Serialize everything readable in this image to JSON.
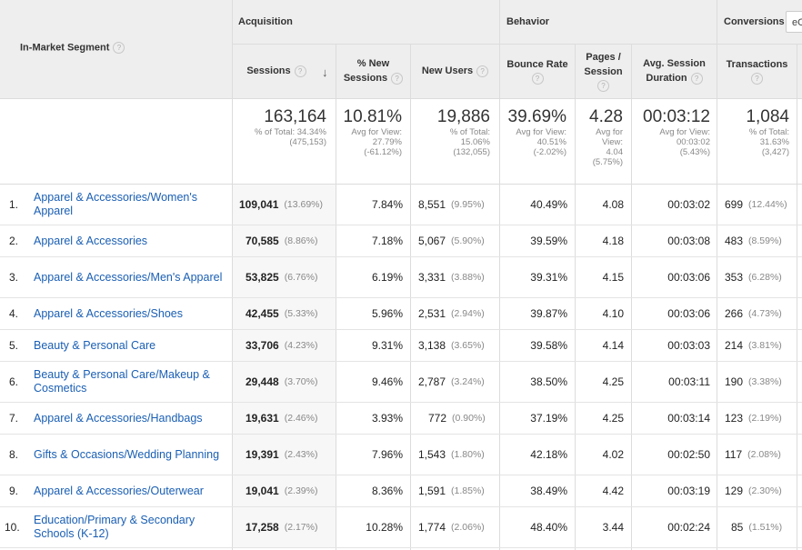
{
  "header": {
    "segment_title": "In-Market Segment",
    "groups": {
      "acquisition": "Acquisition",
      "behavior": "Behavior",
      "conversions": "Conversions"
    },
    "conversions_select": "eC",
    "columns": {
      "sessions": "Sessions",
      "new_sessions_1": "% New",
      "new_sessions_2": "Sessions",
      "new_users": "New Users",
      "bounce_rate": "Bounce Rate",
      "pages_1": "Pages /",
      "pages_2": "Session",
      "avg_1": "Avg. Session",
      "avg_2": "Duration",
      "transactions": "Transactions"
    },
    "help_glyph": "?",
    "sort_glyph": "↓"
  },
  "totals": {
    "sessions": {
      "value": "163,164",
      "l1": "% of Total: 34.34%",
      "l2": "(475,153)"
    },
    "new_sessions": {
      "value": "10.81%",
      "l1": "Avg for View:",
      "l2": "27.79%",
      "l3": "(-61.12%)"
    },
    "new_users": {
      "value": "19,886",
      "l1": "% of Total:",
      "l2": "15.06%",
      "l3": "(132,055)"
    },
    "bounce_rate": {
      "value": "39.69%",
      "l1": "Avg for View:",
      "l2": "40.51%",
      "l3": "(-2.02%)"
    },
    "pages": {
      "value": "4.28",
      "l1": "Avg for",
      "l2": "View:",
      "l3": "4.04",
      "l4": "(5.75%)"
    },
    "avg_duration": {
      "value": "00:03:12",
      "l1": "Avg for View:",
      "l2": "00:03:02",
      "l3": "(5.43%)"
    },
    "transactions": {
      "value": "1,084",
      "l1": "% of Total:",
      "l2": "31.63%",
      "l3": "(3,427)"
    }
  },
  "rows": [
    {
      "num": "1.",
      "label": "Apparel & Accessories/Women's Apparel",
      "sessions": "109,041",
      "sessions_pct": "(13.69%)",
      "new_sessions": "7.84%",
      "new_users": "8,551",
      "new_users_pct": "(9.95%)",
      "bounce": "40.49%",
      "pages": "4.08",
      "duration": "00:03:02",
      "trans": "699",
      "trans_pct": "(12.44%)"
    },
    {
      "num": "2.",
      "label": "Apparel & Accessories",
      "sessions": "70,585",
      "sessions_pct": "(8.86%)",
      "new_sessions": "7.18%",
      "new_users": "5,067",
      "new_users_pct": "(5.90%)",
      "bounce": "39.59%",
      "pages": "4.18",
      "duration": "00:03:08",
      "trans": "483",
      "trans_pct": "(8.59%)"
    },
    {
      "num": "3.",
      "label": "Apparel & Accessories/Men's Apparel",
      "sessions": "53,825",
      "sessions_pct": "(6.76%)",
      "new_sessions": "6.19%",
      "new_users": "3,331",
      "new_users_pct": "(3.88%)",
      "bounce": "39.31%",
      "pages": "4.15",
      "duration": "00:03:06",
      "trans": "353",
      "trans_pct": "(6.28%)"
    },
    {
      "num": "4.",
      "label": "Apparel & Accessories/Shoes",
      "sessions": "42,455",
      "sessions_pct": "(5.33%)",
      "new_sessions": "5.96%",
      "new_users": "2,531",
      "new_users_pct": "(2.94%)",
      "bounce": "39.87%",
      "pages": "4.10",
      "duration": "00:03:06",
      "trans": "266",
      "trans_pct": "(4.73%)"
    },
    {
      "num": "5.",
      "label": "Beauty & Personal Care",
      "sessions": "33,706",
      "sessions_pct": "(4.23%)",
      "new_sessions": "9.31%",
      "new_users": "3,138",
      "new_users_pct": "(3.65%)",
      "bounce": "39.58%",
      "pages": "4.14",
      "duration": "00:03:03",
      "trans": "214",
      "trans_pct": "(3.81%)"
    },
    {
      "num": "6.",
      "label": "Beauty & Personal Care/Makeup & Cosmetics",
      "sessions": "29,448",
      "sessions_pct": "(3.70%)",
      "new_sessions": "9.46%",
      "new_users": "2,787",
      "new_users_pct": "(3.24%)",
      "bounce": "38.50%",
      "pages": "4.25",
      "duration": "00:03:11",
      "trans": "190",
      "trans_pct": "(3.38%)"
    },
    {
      "num": "7.",
      "label": "Apparel & Accessories/Handbags",
      "sessions": "19,631",
      "sessions_pct": "(2.46%)",
      "new_sessions": "3.93%",
      "new_users": "772",
      "new_users_pct": "(0.90%)",
      "bounce": "37.19%",
      "pages": "4.25",
      "duration": "00:03:14",
      "trans": "123",
      "trans_pct": "(2.19%)"
    },
    {
      "num": "8.",
      "label": "Gifts & Occasions/Wedding Planning",
      "sessions": "19,391",
      "sessions_pct": "(2.43%)",
      "new_sessions": "7.96%",
      "new_users": "1,543",
      "new_users_pct": "(1.80%)",
      "bounce": "42.18%",
      "pages": "4.02",
      "duration": "00:02:50",
      "trans": "117",
      "trans_pct": "(2.08%)"
    },
    {
      "num": "9.",
      "label": "Apparel & Accessories/Outerwear",
      "sessions": "19,041",
      "sessions_pct": "(2.39%)",
      "new_sessions": "8.36%",
      "new_users": "1,591",
      "new_users_pct": "(1.85%)",
      "bounce": "38.49%",
      "pages": "4.42",
      "duration": "00:03:19",
      "trans": "129",
      "trans_pct": "(2.30%)"
    },
    {
      "num": "10.",
      "label": "Education/Primary & Secondary Schools (K-12)",
      "sessions": "17,258",
      "sessions_pct": "(2.17%)",
      "new_sessions": "10.28%",
      "new_users": "1,774",
      "new_users_pct": "(2.06%)",
      "bounce": "48.40%",
      "pages": "3.44",
      "duration": "00:02:24",
      "trans": "85",
      "trans_pct": "(1.51%)"
    }
  ]
}
